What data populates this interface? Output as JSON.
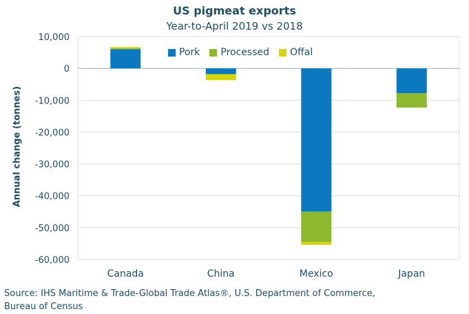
{
  "chart_data": {
    "type": "bar",
    "title": "US pigmeat exports",
    "subtitle": "Year-to-April 2019 vs 2018",
    "ylabel": "Annual change (tonnes)",
    "xlabel": "",
    "categories": [
      "Canada",
      "China",
      "Mexico",
      "Japan"
    ],
    "series": [
      {
        "name": "Pork",
        "color": "#0b79c0",
        "values": [
          6000,
          -1800,
          -45000,
          -7800
        ]
      },
      {
        "name": "Processed",
        "color": "#8db92e",
        "values": [
          300,
          0,
          -9500,
          -4500
        ]
      },
      {
        "name": "Offal",
        "color": "#d6d60b",
        "values": [
          400,
          -1900,
          -900,
          0
        ]
      }
    ],
    "ylim": [
      -60000,
      10000
    ],
    "yticks": [
      10000,
      0,
      -10000,
      -20000,
      -30000,
      -40000,
      -50000,
      -60000
    ],
    "ytick_labels": [
      "10,000",
      "0",
      "-10,000",
      "-20,000",
      "-30,000",
      "-40,000",
      "-50,000",
      "-60,000"
    ],
    "legend_position": "top-center",
    "grid": true
  },
  "source_text": "Source: IHS Maritime  & Trade-Global Trade Atlas®, U.S. Department  of Commerce, Bureau of Census"
}
